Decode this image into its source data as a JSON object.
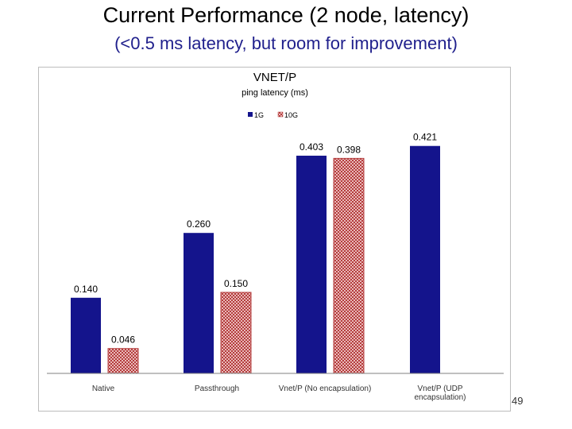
{
  "slide": {
    "title": "Current Performance (2 node, latency)",
    "subtitle": "(<0.5 ms latency, but room for improvement)",
    "page_number": "49"
  },
  "colors": {
    "series_1g": "#14148c",
    "series_10g": "#b43c3c",
    "subtitle": "#1f1f8c"
  },
  "chart_data": {
    "type": "bar",
    "title": "VNET/P",
    "subtitle": "ping latency (ms)",
    "categories": [
      [
        "Native"
      ],
      [
        "Passthrough"
      ],
      [
        "Vnet/P (No encapsulation)"
      ],
      [
        "Vnet/P (UDP",
        "encapsulation)"
      ]
    ],
    "series": [
      {
        "name": "1G",
        "values": [
          0.14,
          0.26,
          0.403,
          0.421
        ],
        "labels": [
          "0.140",
          "0.260",
          "0.403",
          "0.421"
        ]
      },
      {
        "name": "10G",
        "values": [
          0.046,
          0.15,
          0.398,
          null
        ],
        "labels": [
          "0.046",
          "0.150",
          "0.398",
          ""
        ]
      }
    ],
    "ylim": [
      0,
      0.5
    ],
    "grid": false,
    "legend_position": "top-center"
  }
}
